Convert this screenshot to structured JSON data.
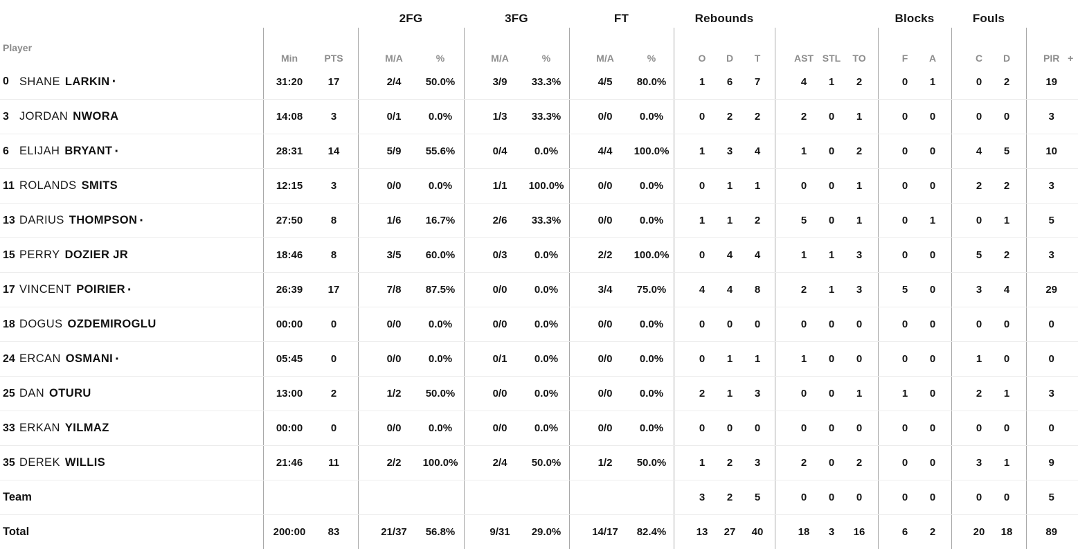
{
  "table": {
    "headers": {
      "player": "Player",
      "min": "Min",
      "pts": "PTS",
      "fg2": "2FG",
      "fg3": "3FG",
      "ft": "FT",
      "ma": "M/A",
      "pct": "%",
      "rebounds": "Rebounds",
      "o": "O",
      "d": "D",
      "t": "T",
      "ast": "AST",
      "stl": "STL",
      "to": "TO",
      "blocks": "Blocks",
      "f": "F",
      "a": "A",
      "fouls": "Fouls",
      "c": "C",
      "pir": "PIR",
      "plus": "+"
    },
    "starter_mark": "·",
    "rows": [
      {
        "num": "0",
        "first": "SHANE",
        "last": "LARKIN",
        "dot": "·",
        "min": "31:20",
        "pts": "17",
        "fg2ma": "2/4",
        "fg2pct": "50.0%",
        "fg3ma": "3/9",
        "fg3pct": "33.3%",
        "ftma": "4/5",
        "ftpct": "80.0%",
        "ro": "1",
        "rd": "6",
        "rt": "7",
        "ast": "4",
        "stl": "1",
        "to": "2",
        "bf": "0",
        "ba": "1",
        "fc": "0",
        "fd": "2",
        "pir": "19"
      },
      {
        "num": "3",
        "first": "JORDAN",
        "last": "NWORA",
        "min": "14:08",
        "pts": "3",
        "fg2ma": "0/1",
        "fg2pct": "0.0%",
        "fg3ma": "1/3",
        "fg3pct": "33.3%",
        "ftma": "0/0",
        "ftpct": "0.0%",
        "ro": "0",
        "rd": "2",
        "rt": "2",
        "ast": "2",
        "stl": "0",
        "to": "1",
        "bf": "0",
        "ba": "0",
        "fc": "0",
        "fd": "0",
        "pir": "3"
      },
      {
        "num": "6",
        "first": "ELIJAH",
        "last": "BRYANT",
        "dot": "·",
        "min": "28:31",
        "pts": "14",
        "fg2ma": "5/9",
        "fg2pct": "55.6%",
        "fg3ma": "0/4",
        "fg3pct": "0.0%",
        "ftma": "4/4",
        "ftpct": "100.0%",
        "ro": "1",
        "rd": "3",
        "rt": "4",
        "ast": "1",
        "stl": "0",
        "to": "2",
        "bf": "0",
        "ba": "0",
        "fc": "4",
        "fd": "5",
        "pir": "10"
      },
      {
        "num": "11",
        "first": "ROLANDS",
        "last": "SMITS",
        "min": "12:15",
        "pts": "3",
        "fg2ma": "0/0",
        "fg2pct": "0.0%",
        "fg3ma": "1/1",
        "fg3pct": "100.0%",
        "ftma": "0/0",
        "ftpct": "0.0%",
        "ro": "0",
        "rd": "1",
        "rt": "1",
        "ast": "0",
        "stl": "0",
        "to": "1",
        "bf": "0",
        "ba": "0",
        "fc": "2",
        "fd": "2",
        "pir": "3"
      },
      {
        "num": "13",
        "first": "DARIUS",
        "last": "THOMPSON",
        "dot": "·",
        "min": "27:50",
        "pts": "8",
        "fg2ma": "1/6",
        "fg2pct": "16.7%",
        "fg3ma": "2/6",
        "fg3pct": "33.3%",
        "ftma": "0/0",
        "ftpct": "0.0%",
        "ro": "1",
        "rd": "1",
        "rt": "2",
        "ast": "5",
        "stl": "0",
        "to": "1",
        "bf": "0",
        "ba": "1",
        "fc": "0",
        "fd": "1",
        "pir": "5"
      },
      {
        "num": "15",
        "first": "PERRY",
        "last": "DOZIER JR",
        "min": "18:46",
        "pts": "8",
        "fg2ma": "3/5",
        "fg2pct": "60.0%",
        "fg3ma": "0/3",
        "fg3pct": "0.0%",
        "ftma": "2/2",
        "ftpct": "100.0%",
        "ro": "0",
        "rd": "4",
        "rt": "4",
        "ast": "1",
        "stl": "1",
        "to": "3",
        "bf": "0",
        "ba": "0",
        "fc": "5",
        "fd": "2",
        "pir": "3"
      },
      {
        "num": "17",
        "first": "VINCENT",
        "last": "POIRIER",
        "dot": "·",
        "min": "26:39",
        "pts": "17",
        "fg2ma": "7/8",
        "fg2pct": "87.5%",
        "fg3ma": "0/0",
        "fg3pct": "0.0%",
        "ftma": "3/4",
        "ftpct": "75.0%",
        "ro": "4",
        "rd": "4",
        "rt": "8",
        "ast": "2",
        "stl": "1",
        "to": "3",
        "bf": "5",
        "ba": "0",
        "fc": "3",
        "fd": "4",
        "pir": "29"
      },
      {
        "num": "18",
        "first": "DOGUS",
        "last": "OZDEMIROGLU",
        "min": "00:00",
        "pts": "0",
        "fg2ma": "0/0",
        "fg2pct": "0.0%",
        "fg3ma": "0/0",
        "fg3pct": "0.0%",
        "ftma": "0/0",
        "ftpct": "0.0%",
        "ro": "0",
        "rd": "0",
        "rt": "0",
        "ast": "0",
        "stl": "0",
        "to": "0",
        "bf": "0",
        "ba": "0",
        "fc": "0",
        "fd": "0",
        "pir": "0"
      },
      {
        "num": "24",
        "first": "ERCAN",
        "last": "OSMANI",
        "dot": "·",
        "min": "05:45",
        "pts": "0",
        "fg2ma": "0/0",
        "fg2pct": "0.0%",
        "fg3ma": "0/1",
        "fg3pct": "0.0%",
        "ftma": "0/0",
        "ftpct": "0.0%",
        "ro": "0",
        "rd": "1",
        "rt": "1",
        "ast": "1",
        "stl": "0",
        "to": "0",
        "bf": "0",
        "ba": "0",
        "fc": "1",
        "fd": "0",
        "pir": "0"
      },
      {
        "num": "25",
        "first": "DAN",
        "last": "OTURU",
        "min": "13:00",
        "pts": "2",
        "fg2ma": "1/2",
        "fg2pct": "50.0%",
        "fg3ma": "0/0",
        "fg3pct": "0.0%",
        "ftma": "0/0",
        "ftpct": "0.0%",
        "ro": "2",
        "rd": "1",
        "rt": "3",
        "ast": "0",
        "stl": "0",
        "to": "1",
        "bf": "1",
        "ba": "0",
        "fc": "2",
        "fd": "1",
        "pir": "3"
      },
      {
        "num": "33",
        "first": "ERKAN",
        "last": "YILMAZ",
        "min": "00:00",
        "pts": "0",
        "fg2ma": "0/0",
        "fg2pct": "0.0%",
        "fg3ma": "0/0",
        "fg3pct": "0.0%",
        "ftma": "0/0",
        "ftpct": "0.0%",
        "ro": "0",
        "rd": "0",
        "rt": "0",
        "ast": "0",
        "stl": "0",
        "to": "0",
        "bf": "0",
        "ba": "0",
        "fc": "0",
        "fd": "0",
        "pir": "0"
      },
      {
        "num": "35",
        "first": "DEREK",
        "last": "WILLIS",
        "min": "21:46",
        "pts": "11",
        "fg2ma": "2/2",
        "fg2pct": "100.0%",
        "fg3ma": "2/4",
        "fg3pct": "50.0%",
        "ftma": "1/2",
        "ftpct": "50.0%",
        "ro": "1",
        "rd": "2",
        "rt": "3",
        "ast": "2",
        "stl": "0",
        "to": "2",
        "bf": "0",
        "ba": "0",
        "fc": "3",
        "fd": "1",
        "pir": "9"
      },
      {
        "label": "Team",
        "min": "",
        "pts": "",
        "fg2ma": "",
        "fg2pct": "",
        "fg3ma": "",
        "fg3pct": "",
        "ftma": "",
        "ftpct": "",
        "ro": "3",
        "rd": "2",
        "rt": "5",
        "ast": "0",
        "stl": "0",
        "to": "0",
        "bf": "0",
        "ba": "0",
        "fc": "0",
        "fd": "0",
        "pir": "5"
      },
      {
        "label": "Total",
        "min": "200:00",
        "pts": "83",
        "fg2ma": "21/37",
        "fg2pct": "56.8%",
        "fg3ma": "9/31",
        "fg3pct": "29.0%",
        "ftma": "14/17",
        "ftpct": "82.4%",
        "ro": "13",
        "rd": "27",
        "rt": "40",
        "ast": "18",
        "stl": "3",
        "to": "16",
        "bf": "6",
        "ba": "2",
        "fc": "20",
        "fd": "18",
        "pir": "89"
      }
    ]
  }
}
